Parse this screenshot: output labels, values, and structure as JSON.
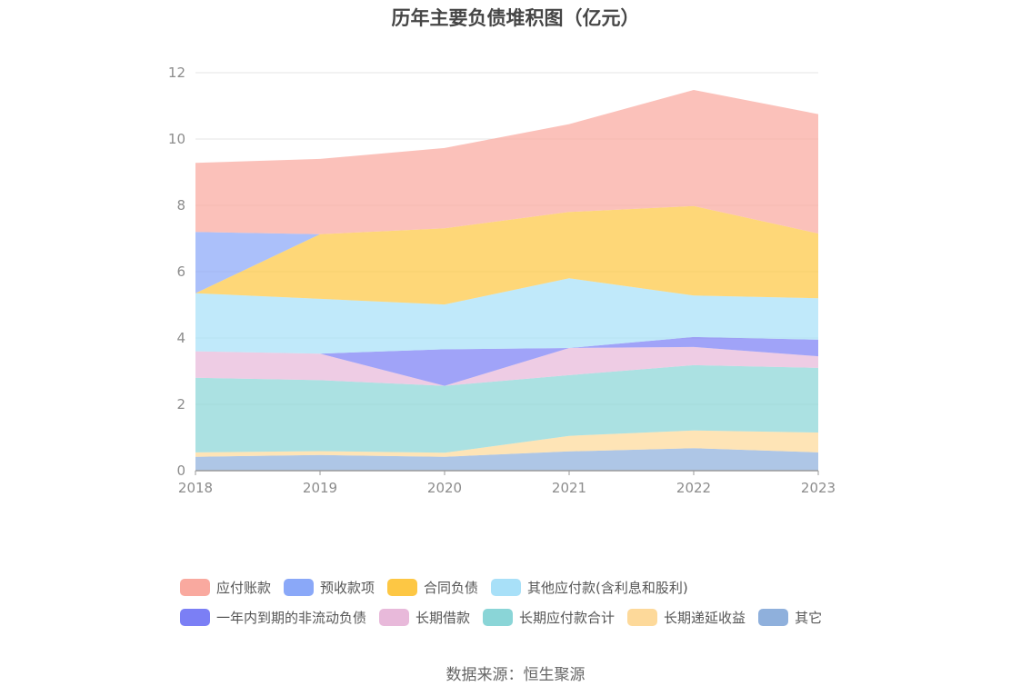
{
  "title": "历年主要负债堆积图（亿元）",
  "source": "数据来源：恒生聚源",
  "chart_data": {
    "type": "area",
    "stacked": true,
    "title": "历年主要负债堆积图（亿元）",
    "x": [
      "2018",
      "2019",
      "2020",
      "2021",
      "2022",
      "2023"
    ],
    "ylim": [
      0,
      12
    ],
    "yticks": [
      0,
      2,
      4,
      6,
      8,
      10,
      12
    ],
    "grid": true,
    "legend_position": "bottom",
    "series": [
      {
        "name": "其它",
        "color": "#8fb0dc",
        "values": [
          0.42,
          0.47,
          0.42,
          0.58,
          0.68,
          0.55
        ]
      },
      {
        "name": "长期递延收益",
        "color": "#fdd99a",
        "values": [
          0.13,
          0.12,
          0.12,
          0.47,
          0.53,
          0.6
        ]
      },
      {
        "name": "长期应付款合计",
        "color": "#8ad5d7",
        "values": [
          2.25,
          2.14,
          2.02,
          1.83,
          1.97,
          1.95
        ]
      },
      {
        "name": "长期借款",
        "color": "#e8b9da",
        "values": [
          0.8,
          0.8,
          0.0,
          0.82,
          0.55,
          0.35
        ]
      },
      {
        "name": "一年内到期的非流动负债",
        "color": "#7b7ff5",
        "values": [
          0.0,
          0.0,
          1.1,
          0.0,
          0.3,
          0.5
        ]
      },
      {
        "name": "其他应付款(含利息和股利)",
        "color": "#a8e0f8",
        "values": [
          1.75,
          1.65,
          1.35,
          2.1,
          1.25,
          1.25
        ]
      },
      {
        "name": "合同负债",
        "color": "#fdc744",
        "values": [
          0.0,
          1.95,
          2.3,
          2.0,
          2.7,
          1.95
        ]
      },
      {
        "name": "预收款项",
        "color": "#8aa8f8",
        "values": [
          1.85,
          0.0,
          0.0,
          0.0,
          0.0,
          0.0
        ]
      },
      {
        "name": "应付账款",
        "color": "#f9a99f",
        "values": [
          2.08,
          2.27,
          2.42,
          2.65,
          3.5,
          3.6
        ]
      }
    ]
  },
  "legend": {
    "rows": [
      [
        {
          "label": "应付账款",
          "color": "#f9a99f"
        },
        {
          "label": "预收款项",
          "color": "#8aa8f8"
        },
        {
          "label": "合同负债",
          "color": "#fdc744"
        },
        {
          "label": "其他应付款(含利息和股利)",
          "color": "#a8e0f8"
        }
      ],
      [
        {
          "label": "一年内到期的非流动负债",
          "color": "#7b7ff5"
        },
        {
          "label": "长期借款",
          "color": "#e8b9da"
        },
        {
          "label": "长期应付款合计",
          "color": "#8ad5d7"
        },
        {
          "label": "长期递延收益",
          "color": "#fdd99a"
        },
        {
          "label": "其它",
          "color": "#8fb0dc"
        }
      ]
    ]
  }
}
